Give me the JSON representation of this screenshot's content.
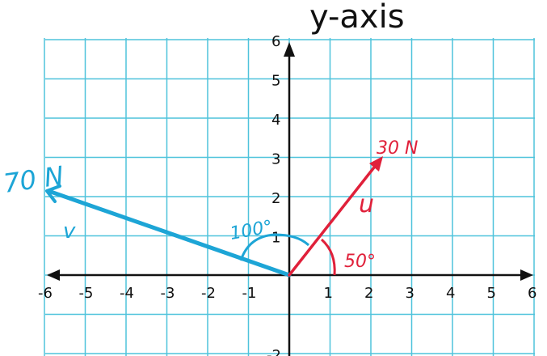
{
  "title": "y-axis",
  "x_ticks": [
    "-6",
    "-5",
    "-4",
    "-3",
    "-2",
    "-1",
    "1",
    "2",
    "3",
    "4",
    "5",
    "6"
  ],
  "y_ticks": [
    "6",
    "5",
    "4",
    "3",
    "2",
    "1",
    "-2"
  ],
  "vectors": {
    "u": {
      "label": "u",
      "magnitude": "30 N",
      "angle": "50°",
      "color": "#e0203a"
    },
    "v": {
      "label": "v",
      "magnitude": "70 N",
      "angle": "100°",
      "color": "#1da5d6"
    }
  },
  "colors": {
    "grid": "#4fc3dc",
    "axes": "#111111"
  }
}
